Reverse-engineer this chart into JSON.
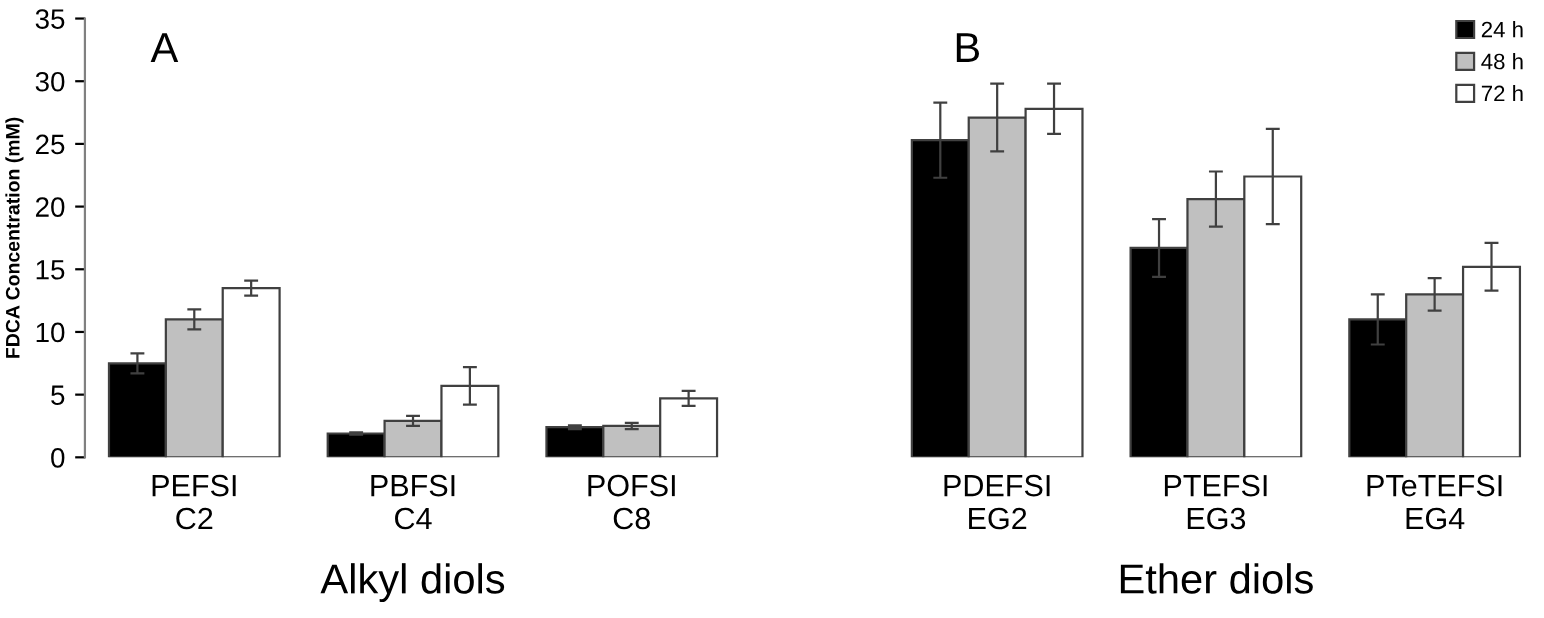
{
  "chart_data": [
    {
      "type": "bar",
      "title": "A",
      "xlabel": "Alkyl diols",
      "ylabel": "FDCA Concentration (mM)",
      "categories": [
        "PEFSI\nC2",
        "PBFSI\nC4",
        "POFSI\nC8"
      ],
      "ylim": [
        0,
        35
      ],
      "yticks": [
        0,
        5,
        10,
        15,
        20,
        25,
        30,
        35
      ],
      "grid": false,
      "legend": false,
      "series": [
        {
          "color": "#000000",
          "values": [
            7.5,
            1.9,
            2.4
          ],
          "errors": [
            0.8,
            0.1,
            0.15
          ]
        },
        {
          "color": "#c0c0c0",
          "values": [
            11.0,
            2.9,
            2.5
          ],
          "errors": [
            0.8,
            0.4,
            0.25
          ]
        },
        {
          "color": "#ffffff",
          "values": [
            13.5,
            5.7,
            4.7
          ],
          "errors": [
            0.6,
            1.5,
            0.6
          ]
        }
      ]
    },
    {
      "type": "bar",
      "title": "B",
      "xlabel": "Ether diols",
      "categories": [
        "PDEFSI\nEG2",
        "PTEFSI\nEG3",
        "PTeTEFSI\nEG4"
      ],
      "ylim": [
        0,
        35
      ],
      "tick_labels": "x",
      "grid": false,
      "legend": "top right",
      "series": [
        {
          "name": "24 h",
          "color": "#000000",
          "values": [
            25.3,
            16.7,
            11.0
          ],
          "errors": [
            3.0,
            2.3,
            2.0
          ]
        },
        {
          "name": "48 h",
          "color": "#c0c0c0",
          "values": [
            27.1,
            20.6,
            13.0
          ],
          "errors": [
            2.7,
            2.2,
            1.3
          ]
        },
        {
          "name": "72 h",
          "color": "#ffffff",
          "values": [
            27.8,
            22.4,
            15.2
          ],
          "errors": [
            2.0,
            3.8,
            1.9
          ]
        }
      ]
    }
  ]
}
